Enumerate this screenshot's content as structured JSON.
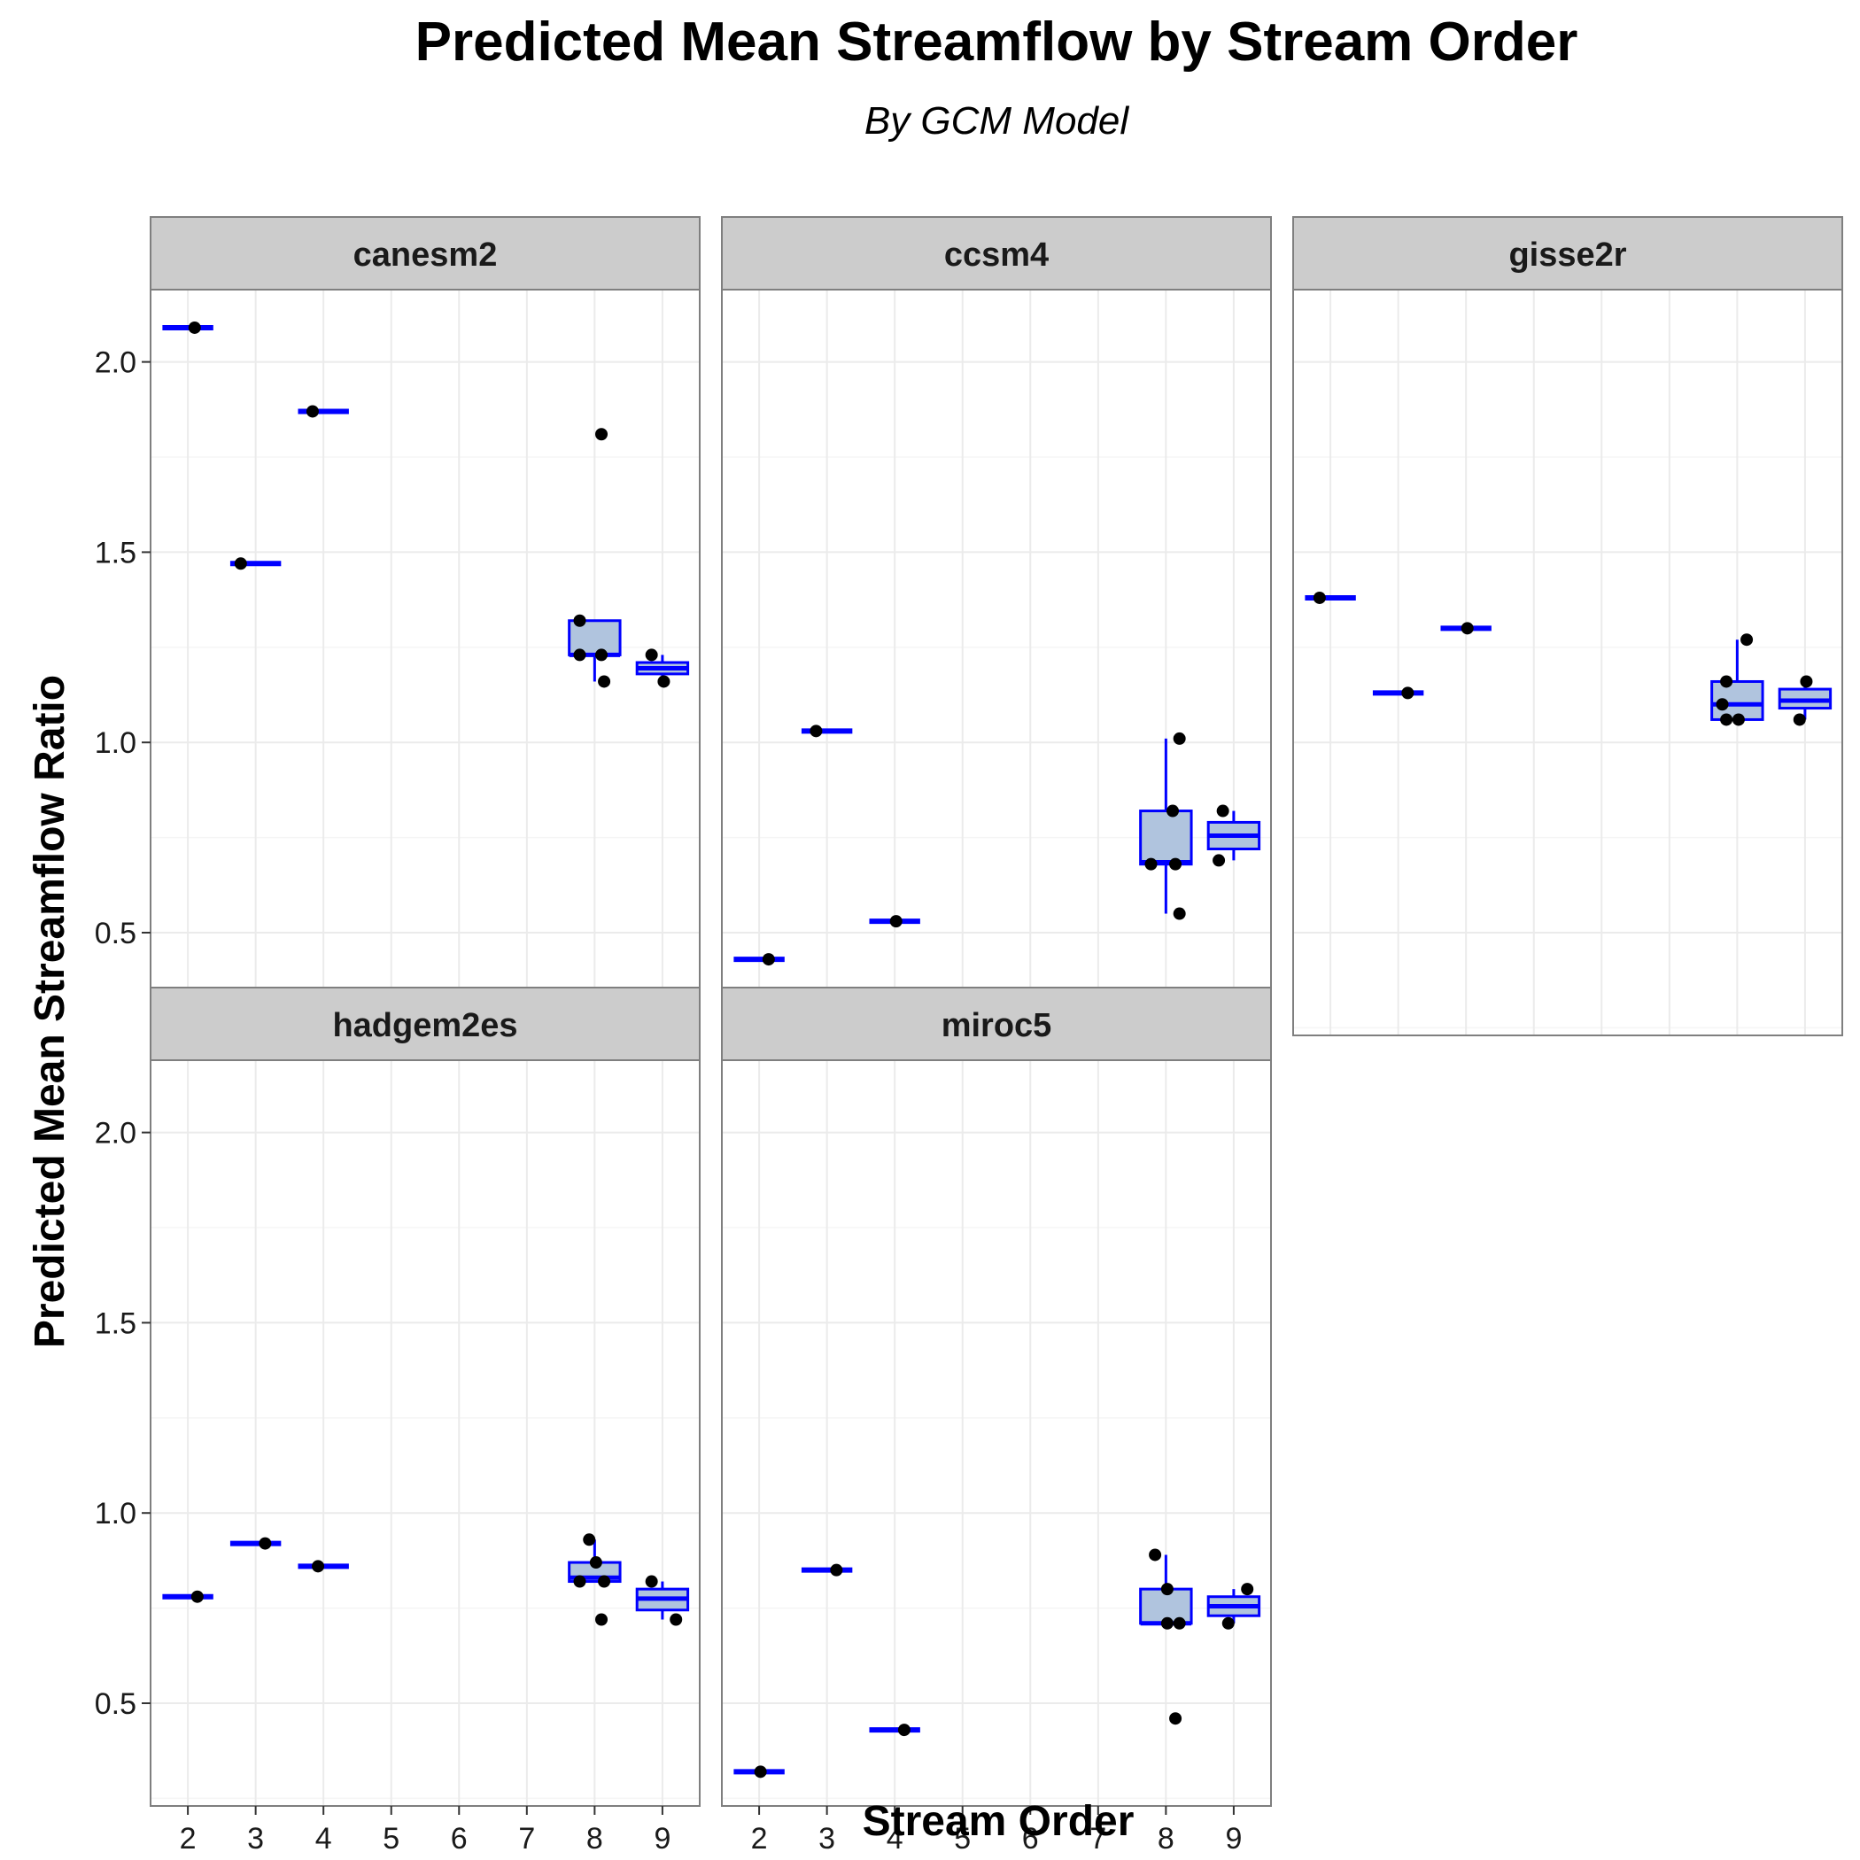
{
  "chart_title": "Predicted Mean Streamflow by Stream Order",
  "chart_subtitle": "By GCM Model",
  "chart_data": {
    "type": "box",
    "title": "Predicted Mean Streamflow by Stream Order",
    "subtitle": "By GCM Model",
    "xlabel": "Stream Order",
    "ylabel": "Predicted Mean Streamflow Ratio",
    "x_ticks": [
      "2",
      "3",
      "4",
      "5",
      "6",
      "7",
      "8",
      "9"
    ],
    "y_ticks": [
      0.5,
      1.0,
      1.5,
      2.0
    ],
    "y_tick_labels": [
      "0.5",
      "1.0",
      "1.5",
      "2.0"
    ],
    "ylim": [
      0.23,
      2.19
    ],
    "xlim": [
      1.45,
      9.55
    ],
    "grid": true,
    "box_fill": "#b0c4de",
    "box_line_color": "#0000ff",
    "point_color": "#000000",
    "strip_color": "#cccccc",
    "panels": [
      {
        "name": "canesm2",
        "boxes": [
          {
            "x": 2,
            "min": 2.09,
            "q1": 2.09,
            "median": 2.09,
            "q3": 2.09,
            "max": 2.09
          },
          {
            "x": 3,
            "min": 1.47,
            "q1": 1.47,
            "median": 1.47,
            "q3": 1.47,
            "max": 1.47
          },
          {
            "x": 4,
            "min": 1.87,
            "q1": 1.87,
            "median": 1.87,
            "q3": 1.87,
            "max": 1.87
          },
          {
            "x": 8,
            "min": 1.16,
            "q1": 1.23,
            "median": 1.23,
            "q3": 1.32,
            "max": 1.32
          },
          {
            "x": 9,
            "min": 1.16,
            "q1": 1.18,
            "median": 1.195,
            "q3": 1.21,
            "max": 1.23
          }
        ],
        "points": [
          {
            "x": 2,
            "y": 2.09
          },
          {
            "x": 3,
            "y": 1.47
          },
          {
            "x": 4,
            "y": 1.87
          },
          {
            "x": 8,
            "y": 1.81
          },
          {
            "x": 8,
            "y": 1.32
          },
          {
            "x": 8,
            "y": 1.23
          },
          {
            "x": 8,
            "y": 1.23
          },
          {
            "x": 8,
            "y": 1.16
          },
          {
            "x": 9,
            "y": 1.16
          },
          {
            "x": 9,
            "y": 1.23
          }
        ]
      },
      {
        "name": "ccsm4",
        "boxes": [
          {
            "x": 2,
            "min": 0.43,
            "q1": 0.43,
            "median": 0.43,
            "q3": 0.43,
            "max": 0.43
          },
          {
            "x": 3,
            "min": 1.03,
            "q1": 1.03,
            "median": 1.03,
            "q3": 1.03,
            "max": 1.03
          },
          {
            "x": 4,
            "min": 0.53,
            "q1": 0.53,
            "median": 0.53,
            "q3": 0.53,
            "max": 0.53
          },
          {
            "x": 8,
            "min": 0.55,
            "q1": 0.68,
            "median": 0.685,
            "q3": 0.82,
            "max": 1.01
          },
          {
            "x": 9,
            "min": 0.69,
            "q1": 0.72,
            "median": 0.755,
            "q3": 0.79,
            "max": 0.82
          }
        ],
        "points": [
          {
            "x": 2,
            "y": 0.43
          },
          {
            "x": 3,
            "y": 1.03
          },
          {
            "x": 4,
            "y": 0.53
          },
          {
            "x": 8,
            "y": 1.01
          },
          {
            "x": 8,
            "y": 0.82
          },
          {
            "x": 8,
            "y": 0.68
          },
          {
            "x": 8,
            "y": 0.68
          },
          {
            "x": 8,
            "y": 0.55
          },
          {
            "x": 9,
            "y": 0.82
          },
          {
            "x": 9,
            "y": 0.69
          }
        ]
      },
      {
        "name": "gisse2r",
        "boxes": [
          {
            "x": 2,
            "min": 1.38,
            "q1": 1.38,
            "median": 1.38,
            "q3": 1.38,
            "max": 1.38
          },
          {
            "x": 3,
            "min": 1.13,
            "q1": 1.13,
            "median": 1.13,
            "q3": 1.13,
            "max": 1.13
          },
          {
            "x": 4,
            "min": 1.3,
            "q1": 1.3,
            "median": 1.3,
            "q3": 1.3,
            "max": 1.3
          },
          {
            "x": 8,
            "min": 1.06,
            "q1": 1.06,
            "median": 1.1,
            "q3": 1.16,
            "max": 1.27
          },
          {
            "x": 9,
            "min": 1.06,
            "q1": 1.09,
            "median": 1.11,
            "q3": 1.14,
            "max": 1.16
          }
        ],
        "points": [
          {
            "x": 2,
            "y": 1.38
          },
          {
            "x": 3,
            "y": 1.13
          },
          {
            "x": 4,
            "y": 1.3
          },
          {
            "x": 8,
            "y": 1.27
          },
          {
            "x": 8,
            "y": 1.16
          },
          {
            "x": 8,
            "y": 1.1
          },
          {
            "x": 8,
            "y": 1.06
          },
          {
            "x": 8,
            "y": 1.06
          },
          {
            "x": 9,
            "y": 1.16
          },
          {
            "x": 9,
            "y": 1.06
          }
        ]
      },
      {
        "name": "hadgem2es",
        "boxes": [
          {
            "x": 2,
            "min": 0.78,
            "q1": 0.78,
            "median": 0.78,
            "q3": 0.78,
            "max": 0.78
          },
          {
            "x": 3,
            "min": 0.92,
            "q1": 0.92,
            "median": 0.92,
            "q3": 0.92,
            "max": 0.92
          },
          {
            "x": 4,
            "min": 0.86,
            "q1": 0.86,
            "median": 0.86,
            "q3": 0.86,
            "max": 0.86
          },
          {
            "x": 8,
            "min": 0.82,
            "q1": 0.82,
            "median": 0.83,
            "q3": 0.87,
            "max": 0.93
          },
          {
            "x": 9,
            "min": 0.72,
            "q1": 0.745,
            "median": 0.775,
            "q3": 0.8,
            "max": 0.82
          }
        ],
        "points": [
          {
            "x": 2,
            "y": 0.78
          },
          {
            "x": 3,
            "y": 0.92
          },
          {
            "x": 4,
            "y": 0.86
          },
          {
            "x": 8,
            "y": 0.93
          },
          {
            "x": 8,
            "y": 0.87
          },
          {
            "x": 8,
            "y": 0.82
          },
          {
            "x": 8,
            "y": 0.82
          },
          {
            "x": 8,
            "y": 0.72
          },
          {
            "x": 9,
            "y": 0.82
          },
          {
            "x": 9,
            "y": 0.72
          }
        ]
      },
      {
        "name": "miroc5",
        "boxes": [
          {
            "x": 2,
            "min": 0.32,
            "q1": 0.32,
            "median": 0.32,
            "q3": 0.32,
            "max": 0.32
          },
          {
            "x": 3,
            "min": 0.85,
            "q1": 0.85,
            "median": 0.85,
            "q3": 0.85,
            "max": 0.85
          },
          {
            "x": 4,
            "min": 0.43,
            "q1": 0.43,
            "median": 0.43,
            "q3": 0.43,
            "max": 0.43
          },
          {
            "x": 8,
            "min": 0.71,
            "q1": 0.71,
            "median": 0.71,
            "q3": 0.8,
            "max": 0.89
          },
          {
            "x": 9,
            "min": 0.71,
            "q1": 0.73,
            "median": 0.755,
            "q3": 0.78,
            "max": 0.8
          }
        ],
        "points": [
          {
            "x": 2,
            "y": 0.32
          },
          {
            "x": 3,
            "y": 0.85
          },
          {
            "x": 4,
            "y": 0.43
          },
          {
            "x": 8,
            "y": 0.89
          },
          {
            "x": 8,
            "y": 0.8
          },
          {
            "x": 8,
            "y": 0.71
          },
          {
            "x": 8,
            "y": 0.71
          },
          {
            "x": 8,
            "y": 0.46
          },
          {
            "x": 9,
            "y": 0.8
          },
          {
            "x": 9,
            "y": 0.71
          }
        ]
      }
    ]
  }
}
